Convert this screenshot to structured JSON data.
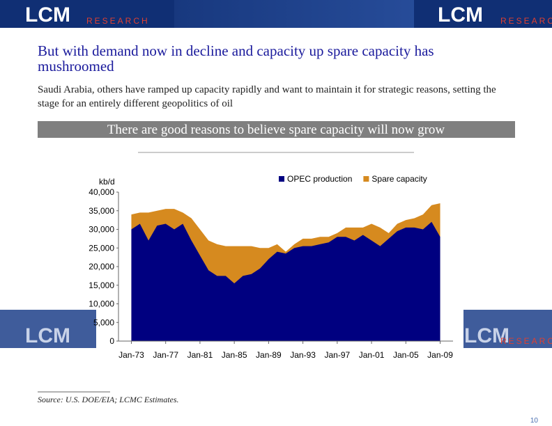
{
  "header": {
    "logo": "LCM",
    "logo_sub": "RESEARCH"
  },
  "slide": {
    "title": "But with demand now in decline and capacity up spare capacity has mushroomed",
    "subtitle": "Saudi Arabia, others have ramped up capacity rapidly and want to maintain it for strategic reasons, setting the stage for an entirely different geopolitics of oil",
    "banner": "There are good reasons to believe spare capacity will now grow",
    "source": "Source: U.S. DOE/EIA; LCMC Estimates.",
    "page_number": "10"
  },
  "chart_data": {
    "type": "stacked-area",
    "y_label": "kb/d",
    "x": [
      1973,
      1974,
      1975,
      1976,
      1977,
      1978,
      1979,
      1980,
      1981,
      1982,
      1983,
      1984,
      1985,
      1986,
      1987,
      1988,
      1989,
      1990,
      1991,
      1992,
      1993,
      1994,
      1995,
      1996,
      1997,
      1998,
      1999,
      2000,
      2001,
      2002,
      2003,
      2004,
      2005,
      2006,
      2007,
      2008,
      2009
    ],
    "series": [
      {
        "name": "OPEC production",
        "color": "#000080",
        "values": [
          30000,
          31500,
          27000,
          31000,
          31500,
          30000,
          31500,
          27000,
          23000,
          19000,
          17500,
          17500,
          15500,
          17500,
          18000,
          19500,
          22000,
          24000,
          23500,
          25000,
          25500,
          25500,
          26000,
          26500,
          28000,
          28000,
          27000,
          28500,
          27000,
          25500,
          27500,
          29500,
          30500,
          30500,
          30000,
          32000,
          28000
        ]
      },
      {
        "name": "Spare capacity",
        "color": "#d68a1f",
        "values": [
          4000,
          3000,
          7500,
          4000,
          4000,
          5500,
          3000,
          6000,
          7000,
          8000,
          8500,
          8000,
          10000,
          8000,
          7500,
          5500,
          3000,
          2000,
          500,
          1000,
          2000,
          2000,
          2000,
          1500,
          1000,
          2500,
          3500,
          2000,
          4500,
          5000,
          1500,
          2000,
          2000,
          2500,
          4000,
          4500,
          9000
        ]
      }
    ],
    "xlim": [
      1971.5,
      2010.5
    ],
    "xticks": [
      {
        "value": 1973,
        "label": "Jan-73"
      },
      {
        "value": 1977,
        "label": "Jan-77"
      },
      {
        "value": 1981,
        "label": "Jan-81"
      },
      {
        "value": 1985,
        "label": "Jan-85"
      },
      {
        "value": 1989,
        "label": "Jan-89"
      },
      {
        "value": 1993,
        "label": "Jan-93"
      },
      {
        "value": 1997,
        "label": "Jan-97"
      },
      {
        "value": 2001,
        "label": "Jan-01"
      },
      {
        "value": 2005,
        "label": "Jan-05"
      },
      {
        "value": 2009,
        "label": "Jan-09"
      }
    ],
    "ylim": [
      0,
      40000
    ],
    "yticks": [
      0,
      {
        "value": 5000,
        "label": "5,000"
      },
      {
        "value": 10000,
        "label": "10,000"
      },
      {
        "value": 15000,
        "label": "15,000"
      },
      {
        "value": 20000,
        "label": "20,000"
      },
      {
        "value": 25000,
        "label": "25,000"
      },
      {
        "value": 30000,
        "label": "30,000"
      },
      {
        "value": 35000,
        "label": "35,000"
      },
      {
        "value": 40000,
        "label": "40,000"
      }
    ],
    "legend": "top"
  }
}
